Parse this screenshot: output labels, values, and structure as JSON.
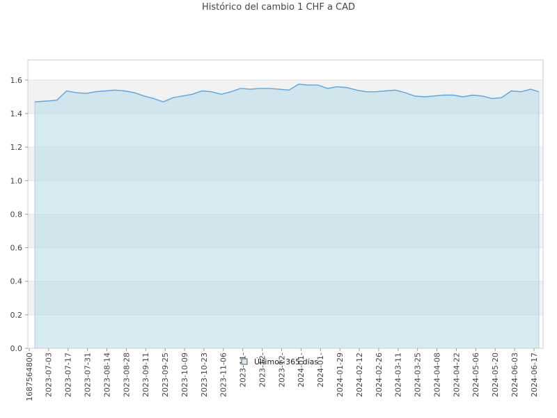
{
  "chart_data": {
    "type": "area",
    "title": "Histórico del cambio 1 CHF a CAD",
    "xlabel": "",
    "ylabel": "",
    "ylim": [
      0,
      1.72
    ],
    "yticks": [
      "0.0",
      "0.2",
      "0.4",
      "0.6",
      "0.8",
      "1.0",
      "1.2",
      "1.4",
      "1.6"
    ],
    "xticks": [
      "1687564800",
      "2023-07-03",
      "2023-07-17",
      "2023-07-31",
      "2023-08-14",
      "2023-08-28",
      "2023-09-11",
      "2023-09-25",
      "2023-10-09",
      "2023-10-23",
      "2023-11-06",
      "2023-11-",
      "2023-12-",
      "2023-12-",
      "2024-01-",
      "2024-01-",
      "2024-01-29",
      "2024-02-12",
      "2024-02-26",
      "2024-03-11",
      "2024-03-25",
      "2024-04-08",
      "2024-04-22",
      "2024-05-06",
      "2024-05-20",
      "2024-06-03",
      "2024-06-17"
    ],
    "grid": true,
    "legend_position": "bottom",
    "series": [
      {
        "name": "Últimos 365 días",
        "line_color": "#5aa5e6",
        "fill_color": "#add8e6",
        "x": [
          "2023-06-24",
          "2023-07-03",
          "2023-07-10",
          "2023-07-17",
          "2023-07-24",
          "2023-07-31",
          "2023-08-07",
          "2023-08-14",
          "2023-08-21",
          "2023-08-28",
          "2023-09-04",
          "2023-09-11",
          "2023-09-18",
          "2023-09-25",
          "2023-10-02",
          "2023-10-09",
          "2023-10-16",
          "2023-10-23",
          "2023-10-30",
          "2023-11-06",
          "2023-11-13",
          "2023-11-20",
          "2023-11-27",
          "2023-12-04",
          "2023-12-11",
          "2023-12-18",
          "2023-12-25",
          "2024-01-01",
          "2024-01-08",
          "2024-01-15",
          "2024-01-22",
          "2024-01-29",
          "2024-02-05",
          "2024-02-12",
          "2024-02-19",
          "2024-02-26",
          "2024-03-04",
          "2024-03-11",
          "2024-03-18",
          "2024-03-25",
          "2024-04-01",
          "2024-04-08",
          "2024-04-15",
          "2024-04-22",
          "2024-04-29",
          "2024-05-06",
          "2024-05-13",
          "2024-05-20",
          "2024-05-27",
          "2024-06-03",
          "2024-06-10",
          "2024-06-17",
          "2024-06-23"
        ],
        "values": [
          1.47,
          1.475,
          1.48,
          1.535,
          1.525,
          1.52,
          1.53,
          1.535,
          1.54,
          1.535,
          1.525,
          1.505,
          1.49,
          1.47,
          1.495,
          1.505,
          1.515,
          1.535,
          1.53,
          1.515,
          1.53,
          1.55,
          1.545,
          1.55,
          1.55,
          1.545,
          1.54,
          1.575,
          1.57,
          1.57,
          1.55,
          1.56,
          1.555,
          1.54,
          1.53,
          1.53,
          1.535,
          1.54,
          1.525,
          1.505,
          1.5,
          1.505,
          1.51,
          1.51,
          1.5,
          1.51,
          1.505,
          1.49,
          1.495,
          1.535,
          1.53,
          1.545,
          1.53
        ]
      }
    ]
  }
}
